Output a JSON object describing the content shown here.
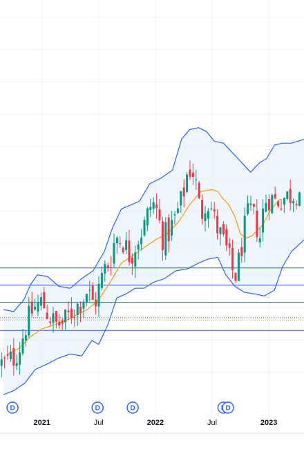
{
  "chart_data": {
    "type": "candlestick",
    "colors": {
      "up": "#089981",
      "down": "#f23645",
      "band": "#2962ff",
      "band_fill": "#e3eef9",
      "ma": "#ff9800",
      "level": "#2962ff",
      "dotted_blue": "#2962ff",
      "dotted_orange": "#ff9800",
      "grid": "#f0f3fa",
      "marker": "#2962ff"
    },
    "x_range": [
      2020.63,
      2023.31
    ],
    "price_range": [
      0,
      100
    ],
    "x_ticks": [
      {
        "x": 2021.0,
        "label": "2021"
      },
      {
        "x": 2021.5,
        "label": "Jul"
      },
      {
        "x": 2022.0,
        "label": "2022"
      },
      {
        "x": 2022.5,
        "label": "Jul"
      },
      {
        "x": 2023.0,
        "label": "2023"
      }
    ],
    "horizontal_levels": [
      61.5,
      52.6,
      43.7,
      29.2
    ],
    "dotted_levels": [
      {
        "price": 35.8,
        "color": "blue"
      },
      {
        "price": 34.6,
        "color": "orange"
      }
    ],
    "dividend_markers": [
      {
        "x": 2020.74,
        "label": "D"
      },
      {
        "x": 2021.49,
        "label": "D"
      },
      {
        "x": 2021.8,
        "label": "D"
      },
      {
        "x": 2022.6,
        "label": "D"
      },
      {
        "x": 2022.64,
        "label": "D"
      }
    ],
    "price_series": [
      [
        2020.66,
        12
      ],
      [
        2020.75,
        15
      ],
      [
        2020.8,
        20
      ],
      [
        2020.86,
        32
      ],
      [
        2020.92,
        40
      ],
      [
        2021.0,
        44
      ],
      [
        2021.05,
        38
      ],
      [
        2021.12,
        32
      ],
      [
        2021.19,
        33
      ],
      [
        2021.25,
        38
      ],
      [
        2021.33,
        43
      ],
      [
        2021.4,
        50
      ],
      [
        2021.46,
        42
      ],
      [
        2021.52,
        55
      ],
      [
        2021.56,
        62
      ],
      [
        2021.6,
        65
      ],
      [
        2021.65,
        78
      ],
      [
        2021.72,
        75
      ],
      [
        2021.78,
        67
      ],
      [
        2021.84,
        76
      ],
      [
        2021.9,
        83
      ],
      [
        2021.97,
        96
      ],
      [
        2022.02,
        90
      ],
      [
        2022.06,
        77
      ],
      [
        2022.12,
        80
      ],
      [
        2022.18,
        88
      ],
      [
        2022.24,
        98
      ],
      [
        2022.28,
        110
      ],
      [
        2022.32,
        114
      ],
      [
        2022.36,
        104
      ],
      [
        2022.4,
        88
      ],
      [
        2022.44,
        96
      ],
      [
        2022.48,
        95
      ],
      [
        2022.53,
        84
      ],
      [
        2022.57,
        79
      ],
      [
        2022.62,
        72
      ],
      [
        2022.66,
        64
      ],
      [
        2022.7,
        56
      ],
      [
        2022.74,
        66
      ],
      [
        2022.78,
        80
      ],
      [
        2022.83,
        92
      ],
      [
        2022.88,
        86
      ],
      [
        2022.92,
        77
      ],
      [
        2022.96,
        96
      ],
      [
        2023.0,
        98
      ],
      [
        2023.06,
        96
      ],
      [
        2023.1,
        97
      ],
      [
        2023.18,
        99
      ],
      [
        2023.25,
        101
      ],
      [
        2023.31,
        103
      ]
    ],
    "ma_series": [
      [
        2020.7,
        17
      ],
      [
        2020.8,
        20
      ],
      [
        2020.9,
        26
      ],
      [
        2021.0,
        30
      ],
      [
        2021.1,
        32
      ],
      [
        2021.2,
        34
      ],
      [
        2021.3,
        37
      ],
      [
        2021.4,
        40
      ],
      [
        2021.5,
        45
      ],
      [
        2021.6,
        54
      ],
      [
        2021.7,
        64
      ],
      [
        2021.8,
        68
      ],
      [
        2021.9,
        72
      ],
      [
        2022.0,
        76
      ],
      [
        2022.1,
        79
      ],
      [
        2022.2,
        85
      ],
      [
        2022.3,
        94
      ],
      [
        2022.4,
        101
      ],
      [
        2022.5,
        102
      ],
      [
        2022.55,
        101
      ],
      [
        2022.6,
        97
      ],
      [
        2022.65,
        94
      ],
      [
        2022.7,
        88
      ],
      [
        2022.75,
        79
      ],
      [
        2022.8,
        77
      ],
      [
        2022.85,
        78
      ],
      [
        2022.9,
        81
      ],
      [
        2022.95,
        84
      ],
      [
        2023.0,
        90
      ],
      [
        2023.05,
        94
      ],
      [
        2023.1,
        97
      ]
    ],
    "band_upper": [
      [
        2020.66,
        40
      ],
      [
        2020.75,
        39
      ],
      [
        2020.84,
        45
      ],
      [
        2020.9,
        53
      ],
      [
        2020.96,
        58
      ],
      [
        2021.05,
        57
      ],
      [
        2021.15,
        52
      ],
      [
        2021.25,
        51
      ],
      [
        2021.35,
        56
      ],
      [
        2021.45,
        60
      ],
      [
        2021.55,
        70
      ],
      [
        2021.62,
        82
      ],
      [
        2021.7,
        92
      ],
      [
        2021.78,
        94
      ],
      [
        2021.86,
        96
      ],
      [
        2021.95,
        105
      ],
      [
        2022.05,
        108
      ],
      [
        2022.15,
        112
      ],
      [
        2022.23,
        128
      ],
      [
        2022.3,
        133
      ],
      [
        2022.38,
        134
      ],
      [
        2022.45,
        132
      ],
      [
        2022.52,
        127
      ],
      [
        2022.6,
        126
      ],
      [
        2022.68,
        121
      ],
      [
        2022.76,
        116
      ],
      [
        2022.84,
        111
      ],
      [
        2022.92,
        116
      ],
      [
        2022.98,
        118
      ],
      [
        2023.05,
        125
      ],
      [
        2023.12,
        126
      ],
      [
        2023.2,
        126
      ],
      [
        2023.31,
        128
      ]
    ],
    "band_lower": [
      [
        2020.66,
        -4
      ],
      [
        2020.75,
        -2
      ],
      [
        2020.85,
        2
      ],
      [
        2020.94,
        9
      ],
      [
        2021.05,
        12
      ],
      [
        2021.15,
        15
      ],
      [
        2021.25,
        17
      ],
      [
        2021.35,
        16
      ],
      [
        2021.44,
        24
      ],
      [
        2021.5,
        22
      ],
      [
        2021.58,
        32
      ],
      [
        2021.66,
        46
      ],
      [
        2021.74,
        48
      ],
      [
        2021.82,
        51
      ],
      [
        2021.9,
        51
      ],
      [
        2021.98,
        54
      ],
      [
        2022.08,
        56
      ],
      [
        2022.18,
        60
      ],
      [
        2022.28,
        61
      ],
      [
        2022.38,
        64
      ],
      [
        2022.46,
        66
      ],
      [
        2022.55,
        67
      ],
      [
        2022.62,
        58
      ],
      [
        2022.7,
        52
      ],
      [
        2022.78,
        49
      ],
      [
        2022.88,
        48
      ],
      [
        2022.96,
        47
      ],
      [
        2023.05,
        50
      ],
      [
        2023.12,
        62
      ],
      [
        2023.2,
        70
      ],
      [
        2023.31,
        76
      ]
    ]
  }
}
